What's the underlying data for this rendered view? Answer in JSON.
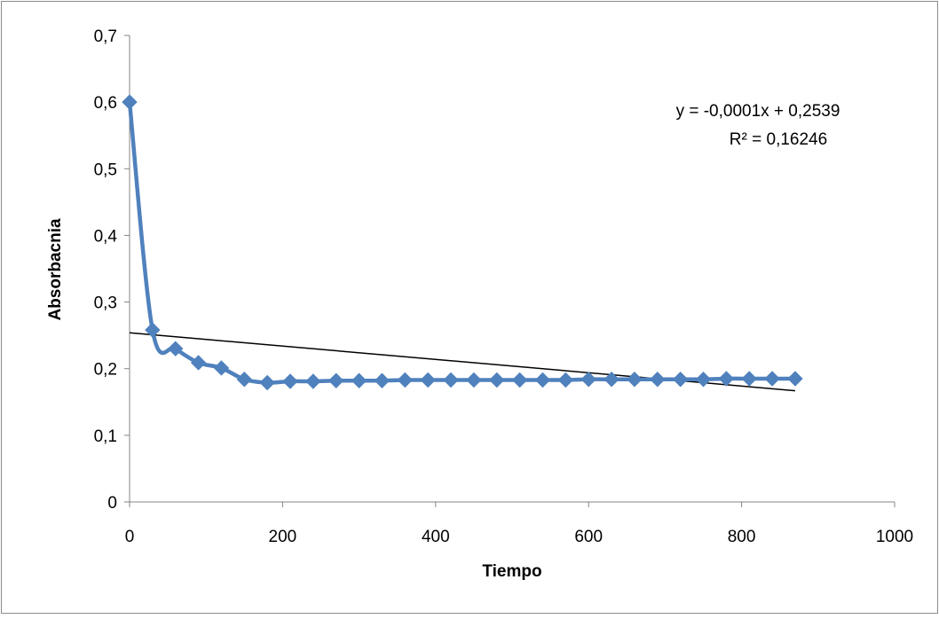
{
  "chart_data": {
    "type": "scatter",
    "title": "",
    "xlabel": "Tiempo",
    "ylabel": "Absorbacnia",
    "xlim": [
      0,
      1000
    ],
    "ylim": [
      0,
      0.7
    ],
    "x_ticks": [
      0,
      200,
      400,
      600,
      800,
      1000
    ],
    "x_tick_labels": [
      "0",
      "200",
      "400",
      "600",
      "800",
      "1000"
    ],
    "y_ticks": [
      0,
      0.1,
      0.2,
      0.3,
      0.4,
      0.5,
      0.6,
      0.7
    ],
    "y_tick_labels": [
      "0",
      "0,1",
      "0,2",
      "0,3",
      "0,4",
      "0,5",
      "0,6",
      "0,7"
    ],
    "grid": false,
    "legend": "none",
    "series": [
      {
        "color": "#4F81BD",
        "marker": "diamond",
        "smooth": true,
        "x": [
          0,
          30,
          60,
          90,
          120,
          150,
          180,
          210,
          240,
          270,
          300,
          330,
          360,
          390,
          420,
          450,
          480,
          510,
          540,
          570,
          600,
          630,
          660,
          690,
          720,
          750,
          780,
          810,
          840,
          870
        ],
        "y": [
          0.6,
          0.258,
          0.23,
          0.209,
          0.201,
          0.184,
          0.179,
          0.181,
          0.181,
          0.182,
          0.182,
          0.182,
          0.183,
          0.183,
          0.183,
          0.183,
          0.183,
          0.183,
          0.183,
          0.183,
          0.184,
          0.184,
          0.184,
          0.184,
          0.184,
          0.184,
          0.185,
          0.185,
          0.185,
          0.185
        ]
      }
    ],
    "trendline": {
      "type": "linear",
      "slope": -0.0001,
      "intercept": 0.2539,
      "x_range": [
        0,
        870
      ],
      "color": "#000000",
      "equation": "y = -0,0001x + 0,2539",
      "r_squared": "R² = 0,16246"
    }
  }
}
